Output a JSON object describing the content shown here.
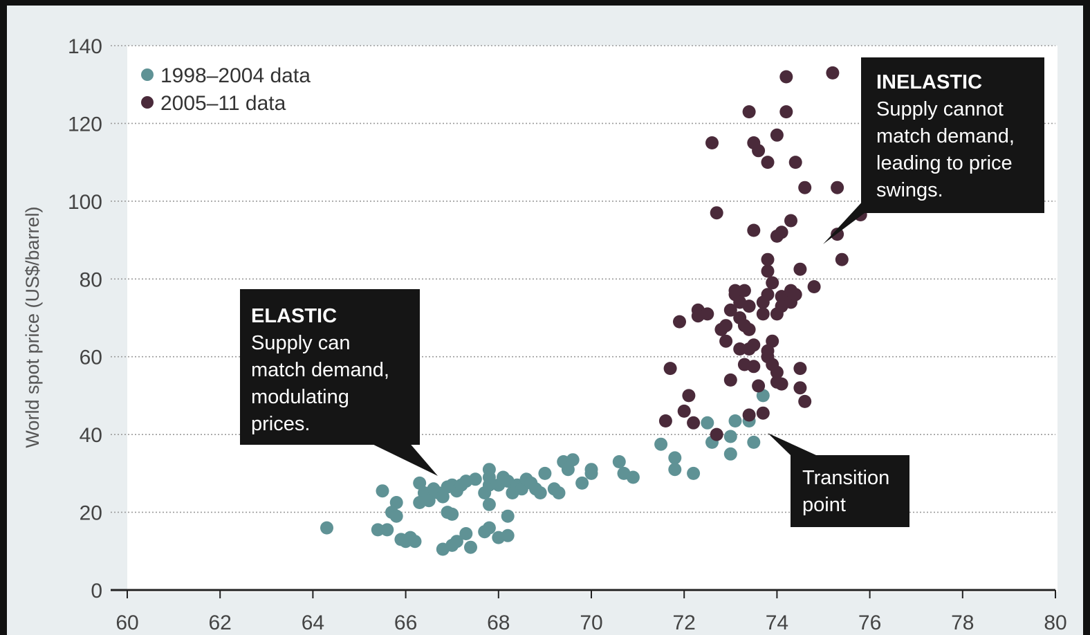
{
  "chart_data": {
    "type": "scatter",
    "title": "",
    "xlabel": "",
    "ylabel": "World spot price (US$/barrel)",
    "xlim": [
      60,
      80
    ],
    "ylim": [
      0,
      140
    ],
    "x_ticks": [
      60,
      62,
      64,
      66,
      68,
      70,
      72,
      74,
      76,
      78,
      80
    ],
    "y_ticks": [
      0,
      20,
      40,
      60,
      80,
      100,
      120,
      140
    ],
    "grid": "horizontal dotted",
    "legend_position": "top-left",
    "series": [
      {
        "name": "1998–2004 data",
        "color": "#5f9295",
        "points": [
          [
            64.3,
            16
          ],
          [
            65.4,
            15.5
          ],
          [
            65.6,
            15.5
          ],
          [
            65.5,
            25.5
          ],
          [
            65.8,
            22.5
          ],
          [
            65.7,
            20
          ],
          [
            65.8,
            19
          ],
          [
            65.9,
            13
          ],
          [
            66.0,
            12.5
          ],
          [
            66.1,
            13.5
          ],
          [
            66.2,
            12.5
          ],
          [
            66.3,
            27.5
          ],
          [
            66.4,
            25
          ],
          [
            66.5,
            23
          ],
          [
            66.3,
            22.5
          ],
          [
            66.6,
            26
          ],
          [
            66.7,
            25
          ],
          [
            66.8,
            24
          ],
          [
            66.9,
            26.5
          ],
          [
            67.0,
            27
          ],
          [
            67.1,
            25.5
          ],
          [
            67.2,
            27
          ],
          [
            67.3,
            28
          ],
          [
            67.5,
            28.5
          ],
          [
            66.9,
            20
          ],
          [
            67.0,
            19.5
          ],
          [
            66.8,
            10.5
          ],
          [
            67.0,
            11.5
          ],
          [
            67.1,
            12.5
          ],
          [
            67.3,
            14.5
          ],
          [
            67.4,
            11
          ],
          [
            67.7,
            15
          ],
          [
            67.8,
            16
          ],
          [
            67.8,
            22
          ],
          [
            67.7,
            25
          ],
          [
            67.8,
            27
          ],
          [
            67.8,
            29
          ],
          [
            67.8,
            31
          ],
          [
            68.0,
            27
          ],
          [
            68.0,
            13.5
          ],
          [
            68.2,
            14
          ],
          [
            68.1,
            29
          ],
          [
            68.2,
            28
          ],
          [
            68.3,
            25
          ],
          [
            68.4,
            27
          ],
          [
            68.5,
            26
          ],
          [
            68.6,
            28.5
          ],
          [
            68.7,
            27.5
          ],
          [
            68.8,
            26
          ],
          [
            68.9,
            25
          ],
          [
            69.0,
            30
          ],
          [
            68.2,
            19
          ],
          [
            69.2,
            26
          ],
          [
            69.3,
            25
          ],
          [
            69.4,
            33
          ],
          [
            69.5,
            31
          ],
          [
            69.6,
            33.5
          ],
          [
            69.8,
            27.5
          ],
          [
            70.0,
            30
          ],
          [
            70.0,
            31
          ],
          [
            70.6,
            33
          ],
          [
            70.7,
            30
          ],
          [
            70.9,
            29
          ],
          [
            71.5,
            37.5
          ],
          [
            71.8,
            34
          ],
          [
            71.8,
            31
          ],
          [
            72.2,
            30
          ],
          [
            72.5,
            43
          ],
          [
            72.6,
            38
          ],
          [
            73.0,
            39.5
          ],
          [
            73.0,
            35
          ],
          [
            73.1,
            43.5
          ],
          [
            73.5,
            38
          ],
          [
            73.7,
            50
          ],
          [
            73.4,
            43.5
          ]
        ]
      },
      {
        "name": "2005–11 data",
        "color": "#4a2a3a",
        "points": [
          [
            71.6,
            43.5
          ],
          [
            71.7,
            57
          ],
          [
            71.9,
            69
          ],
          [
            72.0,
            46
          ],
          [
            72.1,
            50
          ],
          [
            72.2,
            43
          ],
          [
            72.3,
            72
          ],
          [
            72.3,
            70.5
          ],
          [
            72.5,
            71
          ],
          [
            72.6,
            115
          ],
          [
            72.7,
            97
          ],
          [
            72.7,
            40
          ],
          [
            72.8,
            67
          ],
          [
            72.9,
            64
          ],
          [
            72.9,
            68
          ],
          [
            73.0,
            54
          ],
          [
            73.0,
            72
          ],
          [
            73.1,
            76
          ],
          [
            73.1,
            77
          ],
          [
            73.2,
            74
          ],
          [
            73.2,
            70
          ],
          [
            73.2,
            62
          ],
          [
            73.3,
            58
          ],
          [
            73.3,
            68
          ],
          [
            73.3,
            77
          ],
          [
            73.4,
            73
          ],
          [
            73.4,
            67
          ],
          [
            73.4,
            62
          ],
          [
            73.4,
            45
          ],
          [
            73.4,
            123
          ],
          [
            73.5,
            115
          ],
          [
            73.6,
            113
          ],
          [
            73.5,
            92.5
          ],
          [
            73.5,
            63
          ],
          [
            73.5,
            57.5
          ],
          [
            73.6,
            52.5
          ],
          [
            73.7,
            45.5
          ],
          [
            73.7,
            71
          ],
          [
            73.7,
            74
          ],
          [
            73.8,
            76
          ],
          [
            73.8,
            82
          ],
          [
            73.8,
            85
          ],
          [
            73.8,
            110
          ],
          [
            73.8,
            61.5
          ],
          [
            73.8,
            60
          ],
          [
            73.9,
            58
          ],
          [
            73.9,
            64
          ],
          [
            73.9,
            79
          ],
          [
            74.0,
            71
          ],
          [
            74.0,
            117
          ],
          [
            74.0,
            91
          ],
          [
            74.0,
            56
          ],
          [
            74.0,
            53.5
          ],
          [
            74.1,
            92
          ],
          [
            74.1,
            73
          ],
          [
            74.1,
            75.5
          ],
          [
            74.1,
            53
          ],
          [
            74.2,
            123
          ],
          [
            74.2,
            132
          ],
          [
            74.3,
            95
          ],
          [
            74.3,
            74
          ],
          [
            74.3,
            77
          ],
          [
            74.4,
            76
          ],
          [
            74.4,
            110
          ],
          [
            74.5,
            52
          ],
          [
            74.5,
            82.5
          ],
          [
            74.5,
            57
          ],
          [
            74.6,
            48.5
          ],
          [
            74.6,
            103.5
          ],
          [
            74.8,
            78
          ],
          [
            75.2,
            133
          ],
          [
            75.3,
            103.5
          ],
          [
            75.3,
            91.5
          ],
          [
            75.4,
            85
          ],
          [
            75.8,
            96.5
          ]
        ]
      }
    ],
    "annotations": [
      {
        "title": "ELASTIC",
        "lines": [
          "Supply can",
          "match demand,",
          "modulating",
          "prices."
        ]
      },
      {
        "title": "INELASTIC",
        "lines": [
          "Supply cannot",
          "match demand,",
          "leading to price",
          "swings."
        ]
      },
      {
        "title": "",
        "lines": [
          "Transition",
          "point"
        ]
      }
    ]
  }
}
